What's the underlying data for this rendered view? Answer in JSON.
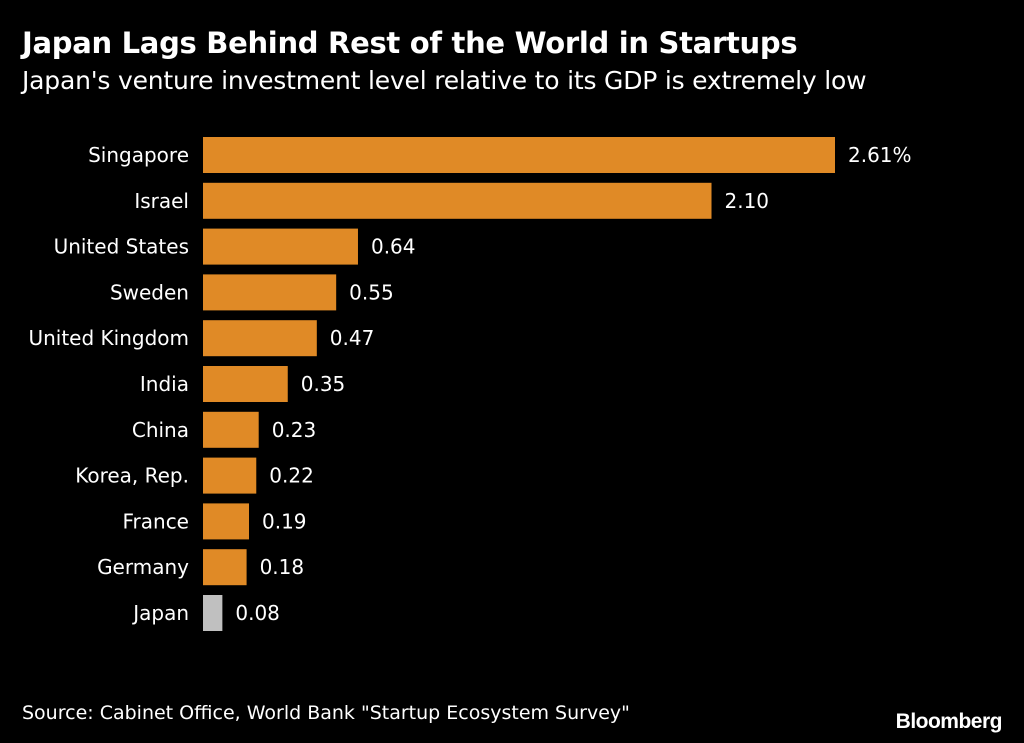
{
  "header": {
    "title": "Japan Lags Behind Rest of the World in Startups",
    "subtitle": "Japan's venture investment level relative to its GDP is extremely low"
  },
  "footer": {
    "source": "Source: Cabinet Office, World Bank \"Startup Ecosystem Survey\"",
    "brand": "Bloomberg"
  },
  "colors": {
    "background": "#000000",
    "bar": "#e08a26",
    "highlight": "#c0c0c0",
    "text": "#ffffff"
  },
  "chart_data": {
    "type": "bar",
    "orientation": "horizontal",
    "title": "Japan Lags Behind Rest of the World in Startups",
    "subtitle": "Japan's venture investment level relative to its GDP is extremely low",
    "xlabel": "",
    "ylabel": "",
    "unit": "%",
    "xlim": [
      0,
      2.61
    ],
    "grid": false,
    "categories": [
      "Singapore",
      "Israel",
      "United States",
      "Sweden",
      "United Kingdom",
      "India",
      "China",
      "Korea, Rep.",
      "France",
      "Germany",
      "Japan"
    ],
    "values": [
      2.61,
      2.1,
      0.64,
      0.55,
      0.47,
      0.35,
      0.23,
      0.22,
      0.19,
      0.18,
      0.08
    ],
    "value_labels": [
      "2.61%",
      "2.10",
      "0.64",
      "0.55",
      "0.47",
      "0.35",
      "0.23",
      "0.22",
      "0.19",
      "0.18",
      "0.08"
    ],
    "highlighted_category": "Japan"
  }
}
